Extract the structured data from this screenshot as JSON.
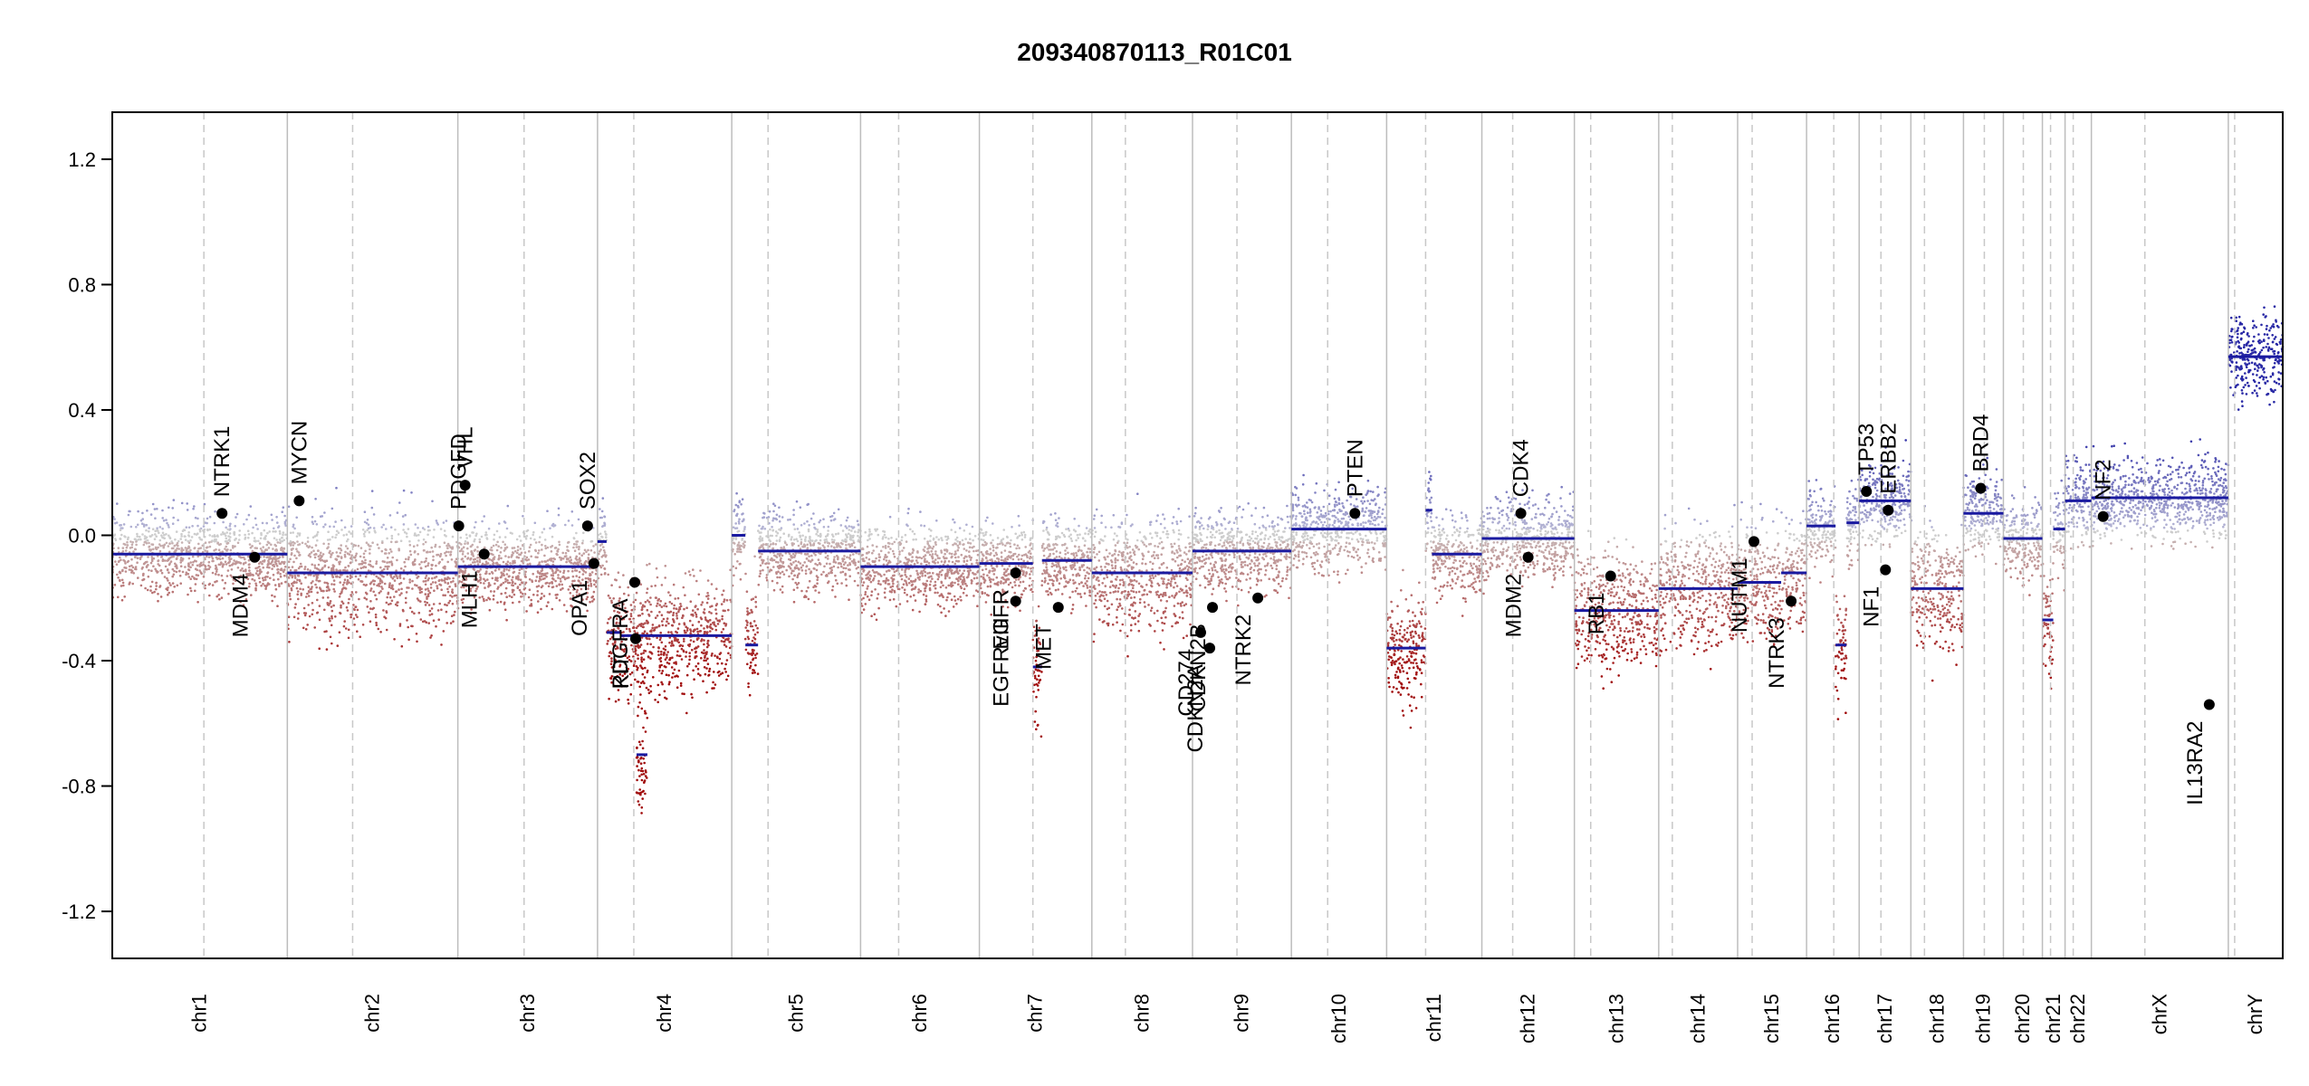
{
  "chart_data": {
    "type": "scatter",
    "title": "209340870113_R01C01",
    "xlabel": "",
    "ylabel": "",
    "ylim": [
      -1.35,
      1.35
    ],
    "yticks": [
      "-1.2",
      "-0.8",
      "-0.4",
      "0.0",
      "0.4",
      "0.8",
      "1.2"
    ],
    "chromosomes": [
      {
        "name": "chr1",
        "start": 0,
        "end": 193,
        "centromere": 101
      },
      {
        "name": "chr2",
        "start": 193,
        "end": 381,
        "centromere": 265
      },
      {
        "name": "chr3",
        "start": 381,
        "end": 535,
        "centromere": 454
      },
      {
        "name": "chr4",
        "start": 535,
        "end": 683,
        "centromere": 575
      },
      {
        "name": "chr5",
        "start": 683,
        "end": 825,
        "centromere": 723
      },
      {
        "name": "chr6",
        "start": 825,
        "end": 956,
        "centromere": 867
      },
      {
        "name": "chr7",
        "start": 956,
        "end": 1080,
        "centromere": 1015
      },
      {
        "name": "chr8",
        "start": 1080,
        "end": 1191,
        "centromere": 1117
      },
      {
        "name": "chr9",
        "start": 1191,
        "end": 1300,
        "centromere": 1240
      },
      {
        "name": "chr10",
        "start": 1300,
        "end": 1405,
        "centromere": 1340
      },
      {
        "name": "chr11",
        "start": 1405,
        "end": 1510,
        "centromere": 1448
      },
      {
        "name": "chr12",
        "start": 1510,
        "end": 1612,
        "centromere": 1544
      },
      {
        "name": "chr13",
        "start": 1612,
        "end": 1705,
        "centromere": 1630
      },
      {
        "name": "chr14",
        "start": 1705,
        "end": 1792,
        "centromere": 1720
      },
      {
        "name": "chr15",
        "start": 1792,
        "end": 1868,
        "centromere": 1808
      },
      {
        "name": "chr16",
        "start": 1868,
        "end": 1926,
        "centromere": 1898
      },
      {
        "name": "chr17",
        "start": 1926,
        "end": 1983,
        "centromere": 1950
      },
      {
        "name": "chr18",
        "start": 1983,
        "end": 2041,
        "centromere": 1998
      },
      {
        "name": "chr19",
        "start": 2041,
        "end": 2085,
        "centromere": 2064
      },
      {
        "name": "chr20",
        "start": 2085,
        "end": 2128,
        "centromere": 2107
      },
      {
        "name": "chr21",
        "start": 2128,
        "end": 2153,
        "centromere": 2137
      },
      {
        "name": "chr22",
        "start": 2153,
        "end": 2182,
        "centromere": 2162
      },
      {
        "name": "chrX",
        "start": 2182,
        "end": 2333,
        "centromere": 2241
      },
      {
        "name": "chrY",
        "start": 2333,
        "end": 2393,
        "centromere": 2340
      }
    ],
    "segments": [
      {
        "x0": 0,
        "x1": 193,
        "y": -0.06
      },
      {
        "x0": 193,
        "x1": 381,
        "y": -0.12
      },
      {
        "x0": 381,
        "x1": 535,
        "y": -0.1
      },
      {
        "x0": 535,
        "x1": 545,
        "y": -0.02
      },
      {
        "x0": 545,
        "x1": 560,
        "y": -0.31
      },
      {
        "x0": 560,
        "x1": 683,
        "y": -0.32
      },
      {
        "x0": 578,
        "x1": 590,
        "y": -0.7
      },
      {
        "x0": 683,
        "x1": 698,
        "y": 0.0
      },
      {
        "x0": 698,
        "x1": 712,
        "y": -0.35
      },
      {
        "x0": 712,
        "x1": 825,
        "y": -0.05
      },
      {
        "x0": 825,
        "x1": 956,
        "y": -0.1
      },
      {
        "x0": 956,
        "x1": 1015,
        "y": -0.09
      },
      {
        "x0": 1015,
        "x1": 1025,
        "y": -0.42
      },
      {
        "x0": 1025,
        "x1": 1080,
        "y": -0.08
      },
      {
        "x0": 1080,
        "x1": 1191,
        "y": -0.12
      },
      {
        "x0": 1191,
        "x1": 1300,
        "y": -0.05
      },
      {
        "x0": 1300,
        "x1": 1405,
        "y": 0.02
      },
      {
        "x0": 1405,
        "x1": 1448,
        "y": -0.36
      },
      {
        "x0": 1448,
        "x1": 1455,
        "y": 0.08
      },
      {
        "x0": 1455,
        "x1": 1510,
        "y": -0.06
      },
      {
        "x0": 1510,
        "x1": 1612,
        "y": -0.01
      },
      {
        "x0": 1612,
        "x1": 1630,
        "y": -0.24
      },
      {
        "x0": 1630,
        "x1": 1705,
        "y": -0.24
      },
      {
        "x0": 1705,
        "x1": 1792,
        "y": -0.17
      },
      {
        "x0": 1792,
        "x1": 1840,
        "y": -0.15
      },
      {
        "x0": 1840,
        "x1": 1868,
        "y": -0.12
      },
      {
        "x0": 1868,
        "x1": 1900,
        "y": 0.03
      },
      {
        "x0": 1900,
        "x1": 1912,
        "y": -0.35
      },
      {
        "x0": 1912,
        "x1": 1926,
        "y": 0.04
      },
      {
        "x0": 1926,
        "x1": 1983,
        "y": 0.11
      },
      {
        "x0": 1983,
        "x1": 2041,
        "y": -0.17
      },
      {
        "x0": 2041,
        "x1": 2085,
        "y": 0.07
      },
      {
        "x0": 2085,
        "x1": 2128,
        "y": -0.01
      },
      {
        "x0": 2128,
        "x1": 2140,
        "y": -0.27
      },
      {
        "x0": 2140,
        "x1": 2153,
        "y": 0.02
      },
      {
        "x0": 2153,
        "x1": 2182,
        "y": 0.11
      },
      {
        "x0": 2182,
        "x1": 2333,
        "y": 0.12
      },
      {
        "x0": 2333,
        "x1": 2393,
        "y": 0.57
      }
    ],
    "genes": [
      {
        "name": "NTRK1",
        "x": 121,
        "y": 0.07,
        "label_side": "above"
      },
      {
        "name": "MDM4",
        "x": 157,
        "y": -0.07,
        "label_side": "below"
      },
      {
        "name": "MYCN",
        "x": 206,
        "y": 0.11,
        "label_side": "above"
      },
      {
        "name": "PDGFD",
        "x": 382,
        "y": 0.03,
        "label_side": "above"
      },
      {
        "name": "VHL",
        "x": 389,
        "y": 0.16,
        "label_side": "above"
      },
      {
        "name": "MLH1",
        "x": 410,
        "y": -0.06,
        "label_side": "below"
      },
      {
        "name": "SOX2",
        "x": 524,
        "y": 0.03,
        "label_side": "above"
      },
      {
        "name": "OPA1",
        "x": 531,
        "y": -0.09,
        "label_side": "below"
      },
      {
        "name": "PDGFRA",
        "x": 576,
        "y": -0.15,
        "label_side": "below"
      },
      {
        "name": "KIT",
        "x": 577,
        "y": -0.33,
        "label_side": "below"
      },
      {
        "name": "EGFR",
        "x": 996,
        "y": -0.12,
        "label_side": "below"
      },
      {
        "name": "EGFRvIII",
        "x": 996,
        "y": -0.21,
        "label_side": "below"
      },
      {
        "name": "MET",
        "x": 1043,
        "y": -0.23,
        "label_side": "below"
      },
      {
        "name": "CD274",
        "x": 1200,
        "y": -0.31,
        "label_side": "below"
      },
      {
        "name": "CDKN2A",
        "x": 1210,
        "y": -0.36,
        "label_side": "below"
      },
      {
        "name": "CDKN2B",
        "x": 1213,
        "y": -0.23,
        "label_side": "below"
      },
      {
        "name": "NTRK2",
        "x": 1263,
        "y": -0.2,
        "label_side": "below"
      },
      {
        "name": "PTEN",
        "x": 1370,
        "y": 0.07,
        "label_side": "above"
      },
      {
        "name": "CDK4",
        "x": 1553,
        "y": 0.07,
        "label_side": "above"
      },
      {
        "name": "MDM2",
        "x": 1561,
        "y": -0.07,
        "label_side": "below"
      },
      {
        "name": "RB1",
        "x": 1652,
        "y": -0.13,
        "label_side": "below"
      },
      {
        "name": "NUTM1",
        "x": 1810,
        "y": -0.02,
        "label_side": "below"
      },
      {
        "name": "NTRK3",
        "x": 1851,
        "y": -0.21,
        "label_side": "below"
      },
      {
        "name": "TP53",
        "x": 1934,
        "y": 0.14,
        "label_side": "above"
      },
      {
        "name": "ERBB2",
        "x": 1958,
        "y": 0.08,
        "label_side": "above"
      },
      {
        "name": "NF1",
        "x": 1955,
        "y": -0.11,
        "label_side": "below"
      },
      {
        "name": "BRD4",
        "x": 2060,
        "y": 0.15,
        "label_side": "above"
      },
      {
        "name": "NF2",
        "x": 2195,
        "y": 0.06,
        "label_side": "above"
      },
      {
        "name": "IL13RA2",
        "x": 2312,
        "y": -0.54,
        "label_side": "below"
      }
    ],
    "grid": false,
    "legend": "none"
  }
}
